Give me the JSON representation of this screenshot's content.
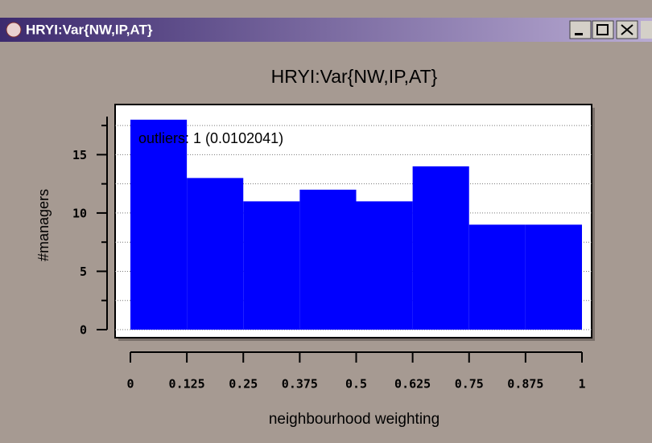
{
  "window": {
    "title": "HRYI:Var{NW,IP,AT}"
  },
  "chart_data": {
    "type": "histogram",
    "title": "HRYI:Var{NW,IP,AT}",
    "xlabel": "neighbourhood weighting",
    "ylabel": "#managers",
    "annotation": "outliers: 1 (0.0102041)",
    "bins": [
      0,
      0.125,
      0.25,
      0.375,
      0.5,
      0.625,
      0.75,
      0.875,
      1
    ],
    "values": [
      18,
      13,
      11,
      12,
      11,
      14,
      9,
      9
    ],
    "color": "#0000ff",
    "xlim": [
      0,
      1
    ],
    "xticks": [
      0,
      0.125,
      0.25,
      0.375,
      0.5,
      0.625,
      0.75,
      0.875,
      1
    ],
    "ylim": [
      0,
      19.3
    ],
    "yticks": [
      0,
      5,
      10,
      15
    ],
    "yminorticks": [
      2.5,
      7.5,
      12.5,
      17.5
    ],
    "grid": true
  }
}
